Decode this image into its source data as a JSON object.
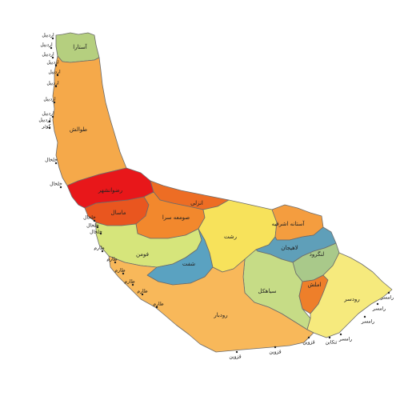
{
  "map": {
    "regions": [
      {
        "key": "astara",
        "label": "آستارا",
        "color": "#b5cf7f"
      },
      {
        "key": "talesh",
        "label": "طوالش",
        "color": "#f5a94a"
      },
      {
        "key": "rezvanshahr",
        "label": "رضوانشهر",
        "color": "#e8171a"
      },
      {
        "key": "masal",
        "label": "ماسال",
        "color": "#e9561f"
      },
      {
        "key": "anzali",
        "label": "انزلی",
        "color": "#ed6d24"
      },
      {
        "key": "someesara",
        "label": "صومعه سرا",
        "color": "#f2882d"
      },
      {
        "key": "fuman",
        "label": "فومن",
        "color": "#d6e57b"
      },
      {
        "key": "shaft",
        "label": "شفت",
        "color": "#5aa2c1"
      },
      {
        "key": "rasht",
        "label": "رشت",
        "color": "#f7e25b"
      },
      {
        "key": "astaneh",
        "label": "آستانه اشرفیه",
        "color": "#f49d3f"
      },
      {
        "key": "lahijan",
        "label": "لاهیجان",
        "color": "#5f9fb9"
      },
      {
        "key": "langarud",
        "label": "لنگرود",
        "color": "#a9c98a"
      },
      {
        "key": "siahkal",
        "label": "سیاهکل",
        "color": "#c6dc86"
      },
      {
        "key": "amlash",
        "label": "املش",
        "color": "#ee7f2a"
      },
      {
        "key": "rudsar",
        "label": "رودسر",
        "color": "#f6ea7d"
      },
      {
        "key": "rudbar",
        "label": "رودبار",
        "color": "#f8b85a"
      }
    ],
    "coast_labels": [
      {
        "key": "c1",
        "text": "اردبیل"
      },
      {
        "key": "c2",
        "text": "اردبیل"
      },
      {
        "key": "c3",
        "text": "اردبیل"
      },
      {
        "key": "c4",
        "text": "اردبیل"
      },
      {
        "key": "c5",
        "text": "اردبیل"
      },
      {
        "key": "c6",
        "text": "اردبیل"
      },
      {
        "key": "c7",
        "text": "اردبیل"
      },
      {
        "key": "c8",
        "text": "اردبیل"
      },
      {
        "key": "c9",
        "text": "اردبیل"
      },
      {
        "key": "c10",
        "text": "کوثر"
      },
      {
        "key": "c11",
        "text": "خلخال"
      },
      {
        "key": "c12",
        "text": "خلخال"
      },
      {
        "key": "c13",
        "text": "خلخال"
      },
      {
        "key": "c14",
        "text": "خلخال"
      },
      {
        "key": "c15",
        "text": "خلخال"
      },
      {
        "key": "c16",
        "text": "طارم"
      },
      {
        "key": "c17",
        "text": "طارم"
      },
      {
        "key": "c18",
        "text": "طارم"
      },
      {
        "key": "c19",
        "text": "طارم"
      },
      {
        "key": "c20",
        "text": "طارم"
      },
      {
        "key": "c21",
        "text": "طارم"
      },
      {
        "key": "c22",
        "text": "قزوین"
      },
      {
        "key": "c23",
        "text": "قزوین"
      },
      {
        "key": "c24",
        "text": "قزوین"
      },
      {
        "key": "c25",
        "text": "تنکابن"
      },
      {
        "key": "c26",
        "text": "رامسر"
      },
      {
        "key": "c27",
        "text": "رامسر"
      },
      {
        "key": "c28",
        "text": "رامسر"
      },
      {
        "key": "c29",
        "text": "رامسر"
      }
    ]
  }
}
